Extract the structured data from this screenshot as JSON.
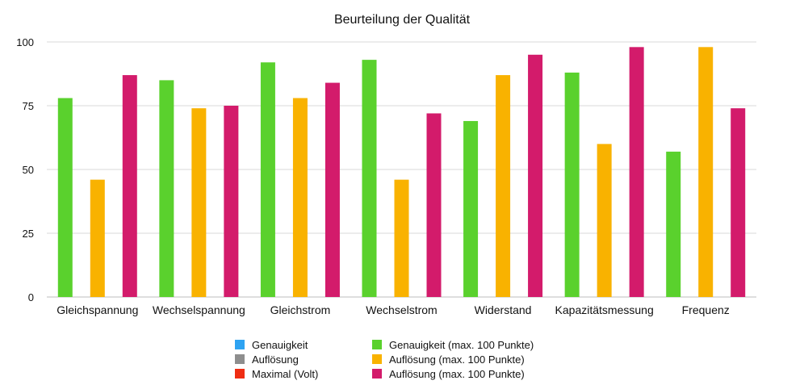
{
  "chart_data": {
    "type": "bar",
    "title": "Beurteilung der Qualität",
    "xlabel": "",
    "ylabel": "",
    "ylim": [
      0,
      100
    ],
    "yticks": [
      0,
      25,
      50,
      75,
      100
    ],
    "grid": true,
    "legend_position": "bottom",
    "categories": [
      "Gleichspannung",
      "Wechselspannung",
      "Gleichstrom",
      "Wechselstrom",
      "Widerstand",
      "Kapazitätsmessung",
      "Frequenz"
    ],
    "series": [
      {
        "name": "Genauigkeit (max. 100 Punkte)",
        "color": "#5ad12d",
        "values": [
          78,
          85,
          92,
          93,
          69,
          88,
          57
        ]
      },
      {
        "name": "Auflösung (max. 100 Punkte)",
        "color": "#f9b200",
        "values": [
          46,
          74,
          78,
          46,
          87,
          60,
          98
        ]
      },
      {
        "name": "Auflösung (max. 100 Punkte)",
        "color": "#d31b6b",
        "values": [
          87,
          75,
          84,
          72,
          95,
          98,
          74
        ]
      }
    ],
    "legend": [
      {
        "label": "Genauigkeit",
        "color": "#2ea3f2"
      },
      {
        "label": "Auflösung",
        "color": "#8e8e8e"
      },
      {
        "label": "Maximal (Volt)",
        "color": "#ef2d13"
      },
      {
        "label": "Genauigkeit (max. 100 Punkte)",
        "color": "#5ad12d"
      },
      {
        "label": "Auflösung (max. 100 Punkte)",
        "color": "#f9b200"
      },
      {
        "label": "Auflösung (max. 100 Punkte)",
        "color": "#d31b6b"
      }
    ]
  }
}
